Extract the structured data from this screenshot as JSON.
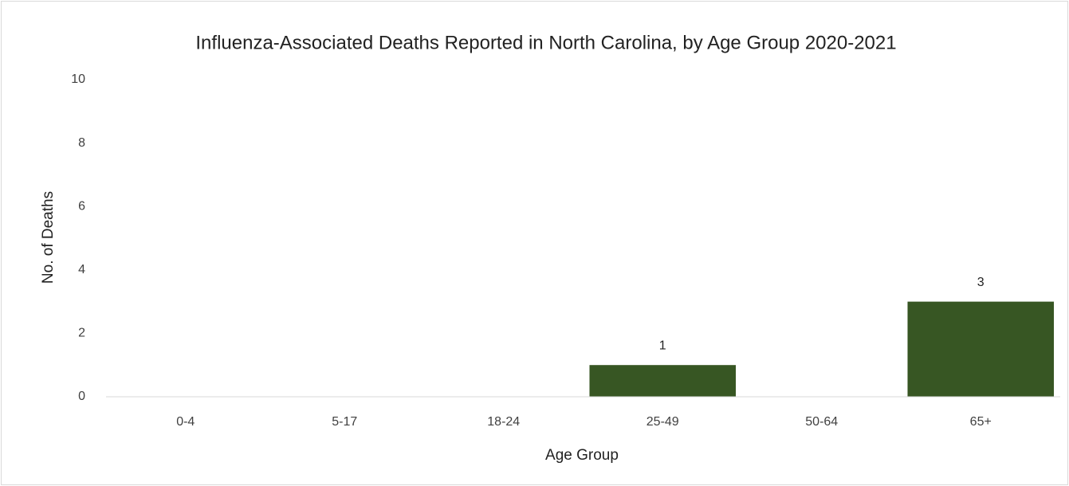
{
  "chart_data": {
    "type": "bar",
    "title": "Influenza-Associated Deaths Reported in North Carolina, by Age Group 2020-2021",
    "x_label": "Age Group",
    "y_label": "No. of Deaths",
    "categories": [
      "0-4",
      "5-17",
      "18-24",
      "25-49",
      "50-64",
      "65+"
    ],
    "values": [
      0,
      0,
      0,
      1,
      0,
      3
    ],
    "color": "#375623",
    "ylim": [
      0,
      10
    ],
    "yticks": [
      0,
      2,
      4,
      6,
      8,
      10
    ],
    "grid": false
  }
}
